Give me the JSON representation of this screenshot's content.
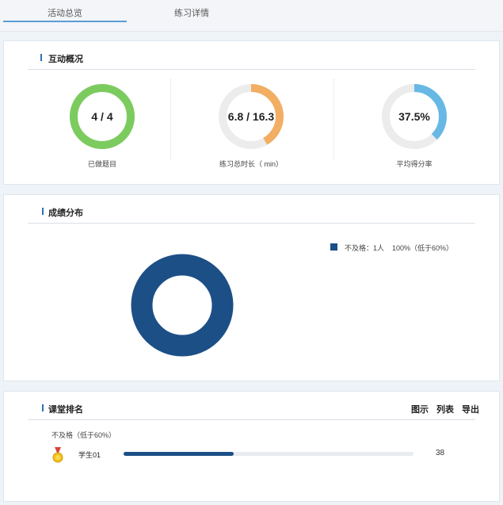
{
  "tabs": [
    {
      "label": "活动总览",
      "active": true
    },
    {
      "label": "练习详情",
      "active": false
    }
  ],
  "overview": {
    "title": "互动概况",
    "metrics": [
      {
        "value": "4 / 4",
        "label": "已做题目",
        "fraction": 1.0,
        "color": "#7ccb5f"
      },
      {
        "value": "6.8 / 16.3",
        "label": "练习总时长（ min）",
        "fraction": 0.417,
        "color": "#f2ae62"
      },
      {
        "value": "37.5%",
        "label": "平均得分率",
        "fraction": 0.375,
        "color": "#67b8e4"
      }
    ],
    "track_color": "#ececec"
  },
  "distribution": {
    "title": "成绩分布",
    "legend": [
      {
        "label": "不及格：1人",
        "percent": "100%（低于60%）",
        "color": "#1c4f86"
      }
    ],
    "chart_data": {
      "type": "pie",
      "categories": [
        "不及格"
      ],
      "values": [
        1
      ],
      "percent": [
        100
      ]
    }
  },
  "ranking": {
    "title": "课堂排名",
    "actions": [
      "图示",
      "列表",
      "导出"
    ],
    "group_label": "不及格（低于60%）",
    "students": [
      {
        "name": "学生01",
        "score": "38",
        "fraction": 0.38
      }
    ],
    "bar_color": "#1c4f86"
  }
}
